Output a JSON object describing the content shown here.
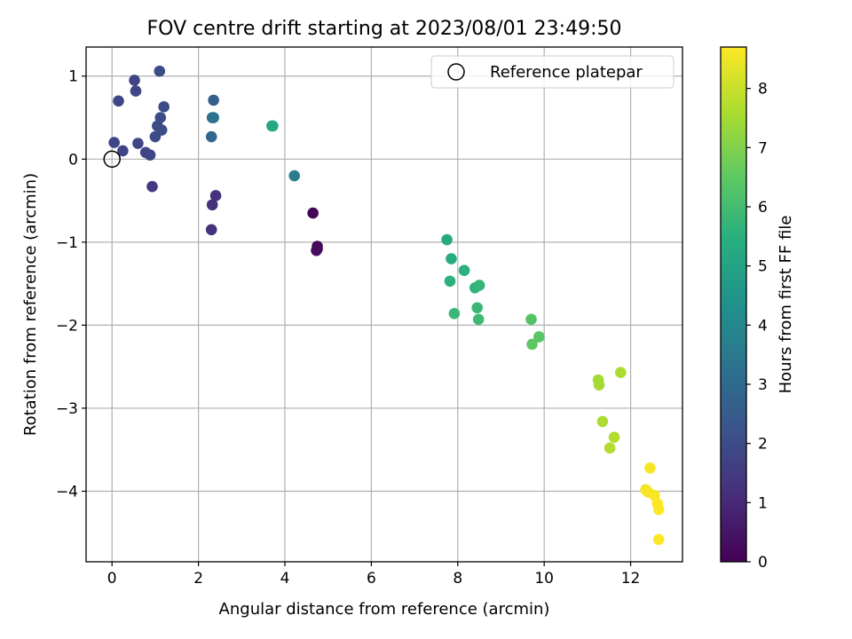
{
  "chart_data": {
    "type": "scatter",
    "title": "FOV centre drift starting at 2023/08/01 23:49:50",
    "xlabel": "Angular distance from reference (arcmin)",
    "ylabel": "Rotation from reference (arcmin)",
    "xlim": [
      -0.6,
      13.2
    ],
    "ylim": [
      -4.85,
      1.35
    ],
    "xticks": [
      0,
      2,
      4,
      6,
      8,
      10,
      12
    ],
    "yticks": [
      1,
      0,
      -1,
      -2,
      -3,
      -4
    ],
    "xtick_labels": [
      "0",
      "2",
      "4",
      "6",
      "8",
      "10",
      "12"
    ],
    "ytick_labels": [
      "1",
      "0",
      "−1",
      "−2",
      "−3",
      "−4"
    ],
    "grid": true,
    "legend": {
      "placement": "top-right",
      "entries": [
        "Reference platepar"
      ]
    },
    "reference_point": {
      "x": 0,
      "y": 0,
      "marker": "open-circle"
    },
    "colorbar": {
      "label": "Hours from first FF file",
      "colormap": "viridis",
      "range": [
        0,
        8.7
      ],
      "ticks": [
        0,
        1,
        2,
        3,
        4,
        5,
        6,
        7,
        8
      ],
      "tick_labels": [
        "0",
        "1",
        "2",
        "3",
        "4",
        "5",
        "6",
        "7",
        "8"
      ]
    },
    "series": [
      {
        "points": [
          {
            "x": 4.65,
            "y": -0.65,
            "c": 0.1
          },
          {
            "x": 4.75,
            "y": -1.05,
            "c": 0.15
          },
          {
            "x": 4.75,
            "y": -1.08,
            "c": 0.2
          },
          {
            "x": 4.73,
            "y": -1.1,
            "c": 0.25
          },
          {
            "x": 2.4,
            "y": -0.44,
            "c": 1.2
          },
          {
            "x": 2.32,
            "y": -0.55,
            "c": 1.2
          },
          {
            "x": 2.3,
            "y": -0.85,
            "c": 1.2
          },
          {
            "x": 0.93,
            "y": -0.33,
            "c": 1.4
          },
          {
            "x": 0.05,
            "y": 0.2,
            "c": 1.8
          },
          {
            "x": 0.15,
            "y": 0.7,
            "c": 1.8
          },
          {
            "x": 0.25,
            "y": 0.1,
            "c": 1.8
          },
          {
            "x": 0.52,
            "y": 0.95,
            "c": 1.8
          },
          {
            "x": 0.55,
            "y": 0.82,
            "c": 1.8
          },
          {
            "x": 0.6,
            "y": 0.19,
            "c": 1.8
          },
          {
            "x": 0.78,
            "y": 0.08,
            "c": 1.8
          },
          {
            "x": 0.88,
            "y": 0.05,
            "c": 1.8
          },
          {
            "x": 1.0,
            "y": 0.27,
            "c": 2.0
          },
          {
            "x": 1.05,
            "y": 0.4,
            "c": 2.0
          },
          {
            "x": 1.12,
            "y": 0.5,
            "c": 2.0
          },
          {
            "x": 1.15,
            "y": 0.35,
            "c": 2.0
          },
          {
            "x": 1.1,
            "y": 1.06,
            "c": 2.0
          },
          {
            "x": 1.2,
            "y": 0.63,
            "c": 2.0
          },
          {
            "x": 2.35,
            "y": 0.71,
            "c": 2.6
          },
          {
            "x": 2.32,
            "y": 0.5,
            "c": 2.8
          },
          {
            "x": 2.35,
            "y": 0.5,
            "c": 3.3
          },
          {
            "x": 2.3,
            "y": 0.27,
            "c": 2.9
          },
          {
            "x": 4.22,
            "y": -0.2,
            "c": 3.7
          },
          {
            "x": 3.7,
            "y": 0.4,
            "c": 5.1
          },
          {
            "x": 3.72,
            "y": 0.4,
            "c": 5.2
          },
          {
            "x": 7.75,
            "y": -0.97,
            "c": 5.3
          },
          {
            "x": 7.85,
            "y": -1.2,
            "c": 5.4
          },
          {
            "x": 8.15,
            "y": -1.34,
            "c": 5.5
          },
          {
            "x": 7.82,
            "y": -1.47,
            "c": 5.5
          },
          {
            "x": 8.4,
            "y": -1.55,
            "c": 5.6
          },
          {
            "x": 8.5,
            "y": -1.52,
            "c": 5.7
          },
          {
            "x": 8.45,
            "y": -1.79,
            "c": 5.8
          },
          {
            "x": 7.92,
            "y": -1.86,
            "c": 5.8
          },
          {
            "x": 8.48,
            "y": -1.93,
            "c": 5.9
          },
          {
            "x": 9.7,
            "y": -1.93,
            "c": 6.3
          },
          {
            "x": 9.88,
            "y": -2.14,
            "c": 6.4
          },
          {
            "x": 9.72,
            "y": -2.23,
            "c": 6.5
          },
          {
            "x": 11.25,
            "y": -2.66,
            "c": 7.5
          },
          {
            "x": 11.27,
            "y": -2.72,
            "c": 7.5
          },
          {
            "x": 11.77,
            "y": -2.57,
            "c": 7.6
          },
          {
            "x": 11.35,
            "y": -3.16,
            "c": 7.6
          },
          {
            "x": 11.62,
            "y": -3.35,
            "c": 7.7
          },
          {
            "x": 11.52,
            "y": -3.48,
            "c": 7.7
          },
          {
            "x": 12.45,
            "y": -3.72,
            "c": 8.6
          },
          {
            "x": 12.35,
            "y": -3.98,
            "c": 8.6
          },
          {
            "x": 12.4,
            "y": -4.01,
            "c": 8.6
          },
          {
            "x": 12.55,
            "y": -4.05,
            "c": 8.6
          },
          {
            "x": 12.62,
            "y": -4.15,
            "c": 8.7
          },
          {
            "x": 12.65,
            "y": -4.22,
            "c": 8.7
          },
          {
            "x": 12.65,
            "y": -4.58,
            "c": 8.7
          }
        ]
      }
    ]
  }
}
